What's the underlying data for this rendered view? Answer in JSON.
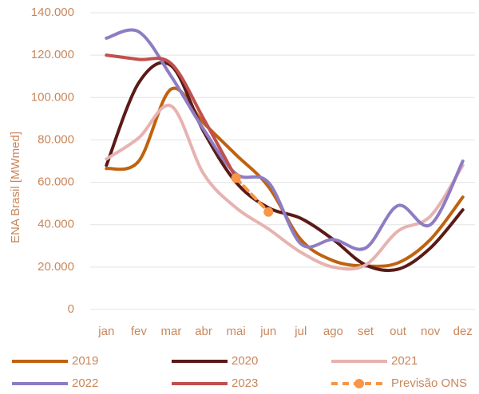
{
  "chart_data": {
    "type": "line",
    "y_label": "ENA Brasil [MWmed]",
    "categories": [
      "jan",
      "fev",
      "mar",
      "abr",
      "mai",
      "jun",
      "jul",
      "ago",
      "set",
      "out",
      "nov",
      "dez"
    ],
    "series": [
      {
        "name": "2019",
        "color": "#c0620f",
        "values": [
          66500,
          70000,
          104000,
          88000,
          73000,
          58000,
          33000,
          23000,
          20500,
          22000,
          33000,
          53000
        ]
      },
      {
        "name": "2020",
        "color": "#5b1a17",
        "values": [
          68000,
          107000,
          115000,
          84000,
          60000,
          48000,
          43000,
          33000,
          21000,
          19000,
          29000,
          47000
        ]
      },
      {
        "name": "2021",
        "color": "#e6b3b0",
        "values": [
          71000,
          81000,
          96000,
          64000,
          48000,
          38000,
          27000,
          20000,
          21000,
          37000,
          44000,
          68000
        ]
      },
      {
        "name": "2022",
        "color": "#8e7cc3",
        "values": [
          128000,
          131000,
          110000,
          85000,
          64000,
          60000,
          31000,
          33000,
          29000,
          49000,
          40000,
          70000
        ]
      },
      {
        "name": "2023",
        "color": "#c0504d",
        "values": [
          120000,
          118000,
          116000,
          90000,
          62000,
          null,
          null,
          null,
          null,
          null,
          null,
          null
        ]
      },
      {
        "name": "Previsão ONS",
        "color": "#f79646",
        "dashed": true,
        "markers": true,
        "values": [
          null,
          null,
          null,
          null,
          62000,
          46000,
          null,
          null,
          null,
          null,
          null,
          null
        ]
      }
    ],
    "ylim": [
      0,
      140000
    ],
    "yticks": [
      0,
      {
        "value": 20000,
        "label": "20.000"
      },
      {
        "value": 40000,
        "label": "40.000"
      },
      {
        "value": 60000,
        "label": "60.000"
      },
      {
        "value": 80000,
        "label": "80.000"
      },
      {
        "value": 100000,
        "label": "100.000"
      },
      {
        "value": 120000,
        "label": "120.000"
      },
      {
        "value": 140000,
        "label": "140.000"
      }
    ],
    "grid": true,
    "legend": "bottom"
  }
}
